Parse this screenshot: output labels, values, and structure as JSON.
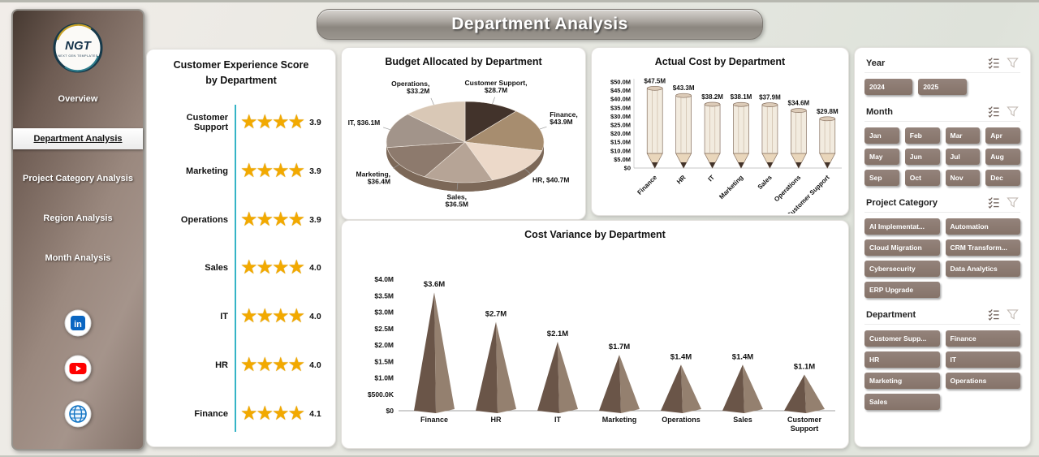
{
  "header": {
    "title": "Department Analysis"
  },
  "sidebar": {
    "logo": {
      "text": "NGT",
      "subtext": "NEXT GEN TEMPLATES"
    },
    "items": [
      {
        "label": "Overview",
        "active": false
      },
      {
        "label": "Department Analysis",
        "active": true
      },
      {
        "label": "Project Category Analysis",
        "active": false
      },
      {
        "label": "Region Analysis",
        "active": false
      },
      {
        "label": "Month Analysis",
        "active": false
      }
    ],
    "social": [
      {
        "name": "linkedin"
      },
      {
        "name": "youtube"
      },
      {
        "name": "website"
      }
    ]
  },
  "chart_data": [
    {
      "type": "rating",
      "title": "Customer Experience Score by Department",
      "categories": [
        "Customer Support",
        "Marketing",
        "Operations",
        "Sales",
        "IT",
        "HR",
        "Finance"
      ],
      "values": [
        3.9,
        3.9,
        3.9,
        4.0,
        4.0,
        4.0,
        4.1
      ],
      "value_labels": [
        "3.9",
        "3.9",
        "3.9",
        "4.0",
        "4.0",
        "4.0",
        "4.1"
      ],
      "stars_shown": 4,
      "star_color": "#F2A900",
      "axis_color": "#35b4c6"
    },
    {
      "type": "pie",
      "title": "Budget Allocated by Department",
      "slices": [
        {
          "name": "Customer Support",
          "value": 28.7,
          "label": "Customer Support, $28.7M",
          "color": "#42332b"
        },
        {
          "name": "Finance",
          "value": 43.9,
          "label": "Finance, $43.9M",
          "color": "#a78d6f"
        },
        {
          "name": "HR",
          "value": 40.7,
          "label": "HR, $40.7M",
          "color": "#ecd9c9"
        },
        {
          "name": "Sales",
          "value": 36.5,
          "label": "Sales, $36.5M",
          "color": "#b6a496"
        },
        {
          "name": "Marketing",
          "value": 36.4,
          "label": "Marketing, $36.4M",
          "color": "#8d7a6d"
        },
        {
          "name": "IT",
          "value": 36.1,
          "label": "IT, $36.1M",
          "color": "#a2948a"
        },
        {
          "name": "Operations",
          "value": 33.2,
          "label": "Operations, $33.2M",
          "color": "#d9c8b6"
        }
      ]
    },
    {
      "type": "bar",
      "title": "Actual Cost by Department",
      "categories": [
        "Finance",
        "HR",
        "IT",
        "Marketing",
        "Sales",
        "Operations",
        "Customer Support"
      ],
      "values": [
        47.5,
        43.3,
        38.2,
        38.1,
        37.9,
        34.6,
        29.8
      ],
      "value_labels": [
        "$47.5M",
        "$43.3M",
        "$38.2M",
        "$38.1M",
        "$37.9M",
        "$34.6M",
        "$29.8M"
      ],
      "yticks": [
        "$50.0M",
        "$45.0M",
        "$40.0M",
        "$35.0M",
        "$30.0M",
        "$25.0M",
        "$20.0M",
        "$15.0M",
        "$10.0M",
        "$5.0M",
        "$0"
      ],
      "ylim": [
        0,
        50
      ]
    },
    {
      "type": "pyramid",
      "title": "Cost Variance by Department",
      "categories": [
        "Finance",
        "HR",
        "IT",
        "Marketing",
        "Operations",
        "Sales",
        "Customer Support"
      ],
      "values": [
        3.6,
        2.7,
        2.1,
        1.7,
        1.4,
        1.4,
        1.1
      ],
      "value_labels": [
        "$3.6M",
        "$2.7M",
        "$2.1M",
        "$1.7M",
        "$1.4M",
        "$1.4M",
        "$1.1M"
      ],
      "yticks": [
        "$4.0M",
        "$3.5M",
        "$3.0M",
        "$2.5M",
        "$2.0M",
        "$1.5M",
        "$1.0M",
        "$500.0K",
        "$0"
      ],
      "ylim": [
        0,
        4
      ]
    }
  ],
  "filters": {
    "sections": [
      {
        "label": "Year",
        "cols": 3,
        "options": [
          "2024",
          "2025"
        ]
      },
      {
        "label": "Month",
        "cols": 4,
        "options": [
          "Jan",
          "Feb",
          "Mar",
          "Apr",
          "May",
          "Jun",
          "Jul",
          "Aug",
          "Sep",
          "Oct",
          "Nov",
          "Dec"
        ]
      },
      {
        "label": "Project Category",
        "cols": 2,
        "options": [
          "AI Implementat...",
          "Automation",
          "Cloud Migration",
          "CRM Transform...",
          "Cybersecurity",
          "Data Analytics",
          "ERP Upgrade"
        ]
      },
      {
        "label": "Department",
        "cols": 2,
        "options": [
          "Customer Supp...",
          "Finance",
          "HR",
          "IT",
          "Marketing",
          "Operations",
          "Sales"
        ]
      }
    ]
  }
}
